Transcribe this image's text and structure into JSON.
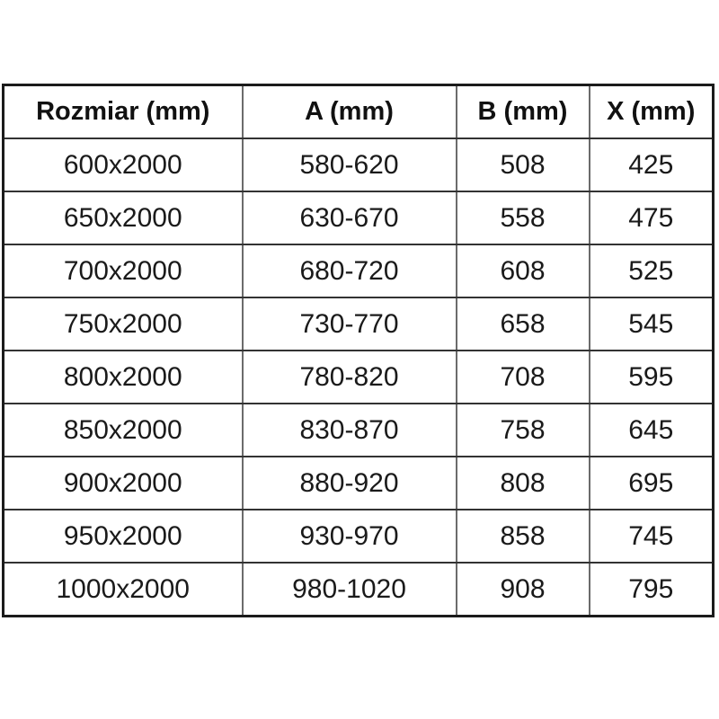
{
  "chart_data": {
    "type": "table",
    "columns": [
      "Rozmiar (mm)",
      "A (mm)",
      "B (mm)",
      "X (mm)"
    ],
    "rows": [
      [
        "600x2000",
        "580-620",
        "508",
        "425"
      ],
      [
        "650x2000",
        "630-670",
        "558",
        "475"
      ],
      [
        "700x2000",
        "680-720",
        "608",
        "525"
      ],
      [
        "750x2000",
        "730-770",
        "658",
        "545"
      ],
      [
        "800x2000",
        "780-820",
        "708",
        "595"
      ],
      [
        "850x2000",
        "830-870",
        "758",
        "645"
      ],
      [
        "900x2000",
        "880-920",
        "808",
        "695"
      ],
      [
        "950x2000",
        "930-970",
        "858",
        "745"
      ],
      [
        "1000x2000",
        "980-1020",
        "908",
        "795"
      ]
    ]
  },
  "colors": {
    "background": "#ffffff",
    "text": "#1a1a1a",
    "header_text": "#111111",
    "grid_horizontal": "#333333",
    "grid_vertical": "#6b6b6b",
    "outer_border": "#1b1b1b"
  }
}
